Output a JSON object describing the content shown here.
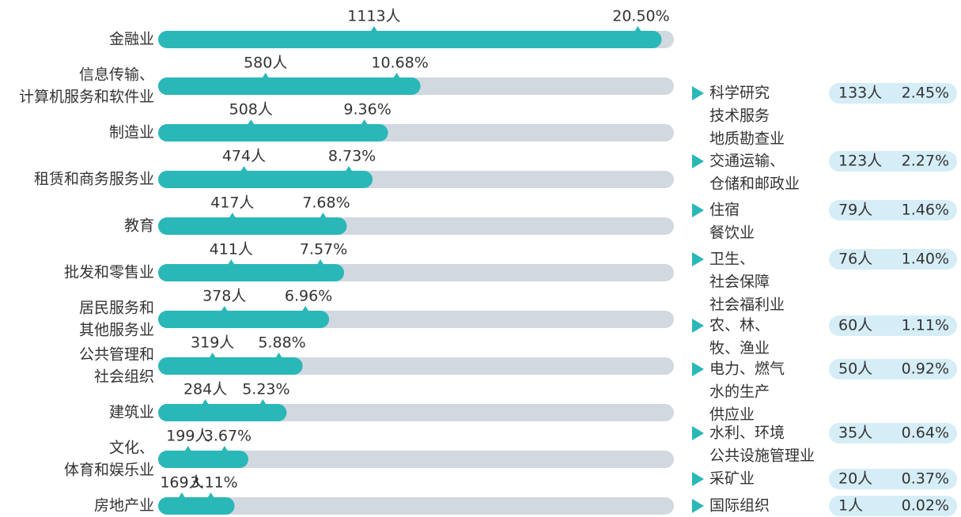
{
  "chart_data": {
    "type": "bar",
    "orientation": "horizontal",
    "categories": [
      [
        "金融业"
      ],
      [
        "信息传输、",
        "计算机服务和软件业"
      ],
      [
        "制造业"
      ],
      [
        "租赁和商务服务业"
      ],
      [
        "教育"
      ],
      [
        "批发和零售业"
      ],
      [
        "居民服务和",
        "其他服务业"
      ],
      [
        "公共管理和",
        "社会组织"
      ],
      [
        "建筑业"
      ],
      [
        "文化、",
        "体育和娱乐业"
      ],
      [
        "房地产业"
      ]
    ],
    "values": [
      20.5,
      10.68,
      9.36,
      8.73,
      7.68,
      7.57,
      6.96,
      5.88,
      5.23,
      3.67,
      3.11
    ],
    "value_labels": [
      "20.50%",
      "10.68%",
      "9.36%",
      "8.73%",
      "7.68%",
      "7.57%",
      "6.96%",
      "5.88%",
      "5.23%",
      "3.67%",
      "3.11%"
    ],
    "counts": [
      1113,
      580,
      508,
      474,
      417,
      411,
      378,
      319,
      284,
      199,
      169
    ],
    "count_labels": [
      "1113人",
      "580人",
      "508人",
      "474人",
      "417人",
      "411人",
      "378人",
      "319人",
      "284人",
      "199人",
      "169人"
    ],
    "xlim": [
      0,
      21
    ],
    "color": "#2ab7b8",
    "track_color": "#d2d8e0",
    "other_categories": [
      [
        "科学研究",
        "技术服务",
        "地质勘查业"
      ],
      [
        "交通运输、",
        "仓储和邮政业"
      ],
      [
        "住宿",
        "餐饮业"
      ],
      [
        "卫生、",
        "社会保障",
        "社会福利业"
      ],
      [
        "农、林、",
        "牧、渔业"
      ],
      [
        "电力、燃气",
        "水的生产",
        "供应业"
      ],
      [
        "水利、环境",
        "公共设施管理业"
      ],
      [
        "采矿业"
      ],
      [
        "国际组织"
      ]
    ],
    "other_counts": [
      133,
      123,
      79,
      76,
      60,
      50,
      35,
      20,
      1
    ],
    "other_count_labels": [
      "133人",
      "123人",
      "79人",
      "76人",
      "60人",
      "50人",
      "35人",
      "20人",
      "1人"
    ],
    "other_values": [
      2.45,
      2.27,
      1.46,
      1.4,
      1.11,
      0.92,
      0.64,
      0.37,
      0.02
    ],
    "other_value_labels": [
      "2.45%",
      "2.27%",
      "1.46%",
      "1.40%",
      "1.11%",
      "0.92%",
      "0.64%",
      "0.37%",
      "0.02%"
    ],
    "pill_color": "#d5edf6"
  }
}
